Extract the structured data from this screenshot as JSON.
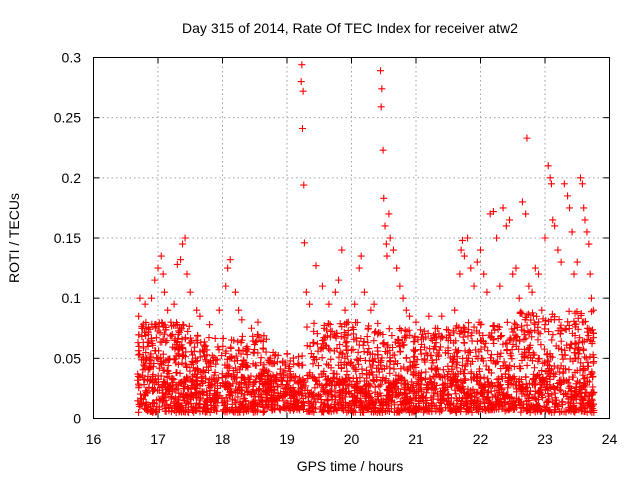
{
  "chart_data": {
    "type": "scatter",
    "title": "Day 315 of 2014, Rate Of TEC Index for receiver atw2",
    "xlabel": "GPS time / hours",
    "ylabel": "ROTI / TECUs",
    "xlim": [
      16,
      24
    ],
    "ylim": [
      0,
      0.3
    ],
    "x_ticks": [
      16,
      17,
      18,
      19,
      20,
      21,
      22,
      23,
      24
    ],
    "x_tick_labels": [
      "16",
      "17",
      "18",
      "19",
      "20",
      "21",
      "22",
      "23",
      "24"
    ],
    "y_ticks": [
      0,
      0.05,
      0.1,
      0.15,
      0.2,
      0.25,
      0.3
    ],
    "y_tick_labels": [
      "0",
      "0.05",
      "0.1",
      "0.15",
      "0.2",
      "0.25",
      "0.3"
    ],
    "grid": true,
    "marker": "+",
    "color": "#ff0000",
    "series": [
      {
        "name": "ROTI",
        "points": [
          [
            16.7,
            0.085
          ],
          [
            16.72,
            0.1
          ],
          [
            16.75,
            0.075
          ],
          [
            16.8,
            0.095
          ],
          [
            16.85,
            0.07
          ],
          [
            16.9,
            0.1
          ],
          [
            16.95,
            0.115
          ],
          [
            17.0,
            0.125
          ],
          [
            17.05,
            0.135
          ],
          [
            17.08,
            0.12
          ],
          [
            17.1,
            0.105
          ],
          [
            17.15,
            0.09
          ],
          [
            17.2,
            0.08
          ],
          [
            17.25,
            0.095
          ],
          [
            17.3,
            0.128
          ],
          [
            17.35,
            0.132
          ],
          [
            17.38,
            0.145
          ],
          [
            17.42,
            0.15
          ],
          [
            17.45,
            0.12
          ],
          [
            17.5,
            0.105
          ],
          [
            17.6,
            0.09
          ],
          [
            17.65,
            0.085
          ],
          [
            17.8,
            0.078
          ],
          [
            17.95,
            0.09
          ],
          [
            18.05,
            0.11
          ],
          [
            18.08,
            0.125
          ],
          [
            18.12,
            0.132
          ],
          [
            18.2,
            0.105
          ],
          [
            18.25,
            0.09
          ],
          [
            18.3,
            0.082
          ],
          [
            18.45,
            0.075
          ],
          [
            18.55,
            0.08
          ],
          [
            19.23,
            0.294
          ],
          [
            19.22,
            0.28
          ],
          [
            19.25,
            0.272
          ],
          [
            19.24,
            0.241
          ],
          [
            19.26,
            0.194
          ],
          [
            19.27,
            0.146
          ],
          [
            19.3,
            0.105
          ],
          [
            19.35,
            0.095
          ],
          [
            19.45,
            0.127
          ],
          [
            19.55,
            0.11
          ],
          [
            19.65,
            0.095
          ],
          [
            19.75,
            0.105
          ],
          [
            19.8,
            0.115
          ],
          [
            19.85,
            0.14
          ],
          [
            19.9,
            0.09
          ],
          [
            19.95,
            0.08
          ],
          [
            20.05,
            0.095
          ],
          [
            20.12,
            0.125
          ],
          [
            20.15,
            0.135
          ],
          [
            20.2,
            0.105
          ],
          [
            20.3,
            0.09
          ],
          [
            20.35,
            0.095
          ],
          [
            20.45,
            0.289
          ],
          [
            20.47,
            0.274
          ],
          [
            20.46,
            0.259
          ],
          [
            20.49,
            0.223
          ],
          [
            20.5,
            0.183
          ],
          [
            20.52,
            0.16
          ],
          [
            20.54,
            0.145
          ],
          [
            20.55,
            0.135
          ],
          [
            20.58,
            0.17
          ],
          [
            20.6,
            0.15
          ],
          [
            20.65,
            0.14
          ],
          [
            20.7,
            0.125
          ],
          [
            20.75,
            0.11
          ],
          [
            20.8,
            0.1
          ],
          [
            20.85,
            0.09
          ],
          [
            20.9,
            0.085
          ],
          [
            21.0,
            0.08
          ],
          [
            21.1,
            0.07
          ],
          [
            21.2,
            0.085
          ],
          [
            21.3,
            0.075
          ],
          [
            21.4,
            0.085
          ],
          [
            21.5,
            0.065
          ],
          [
            21.6,
            0.09
          ],
          [
            21.68,
            0.12
          ],
          [
            21.7,
            0.14
          ],
          [
            21.72,
            0.148
          ],
          [
            21.75,
            0.135
          ],
          [
            21.8,
            0.15
          ],
          [
            21.85,
            0.125
          ],
          [
            21.9,
            0.11
          ],
          [
            21.95,
            0.13
          ],
          [
            22.0,
            0.14
          ],
          [
            22.05,
            0.12
          ],
          [
            22.1,
            0.105
          ],
          [
            22.15,
            0.17
          ],
          [
            22.2,
            0.172
          ],
          [
            22.25,
            0.15
          ],
          [
            22.3,
            0.11
          ],
          [
            22.35,
            0.175
          ],
          [
            22.4,
            0.16
          ],
          [
            22.45,
            0.165
          ],
          [
            22.5,
            0.12
          ],
          [
            22.55,
            0.125
          ],
          [
            22.6,
            0.1
          ],
          [
            22.65,
            0.18
          ],
          [
            22.7,
            0.17
          ],
          [
            22.72,
            0.233
          ],
          [
            22.75,
            0.11
          ],
          [
            22.8,
            0.105
          ],
          [
            22.85,
            0.125
          ],
          [
            22.9,
            0.12
          ],
          [
            22.95,
            0.09
          ],
          [
            23.0,
            0.15
          ],
          [
            23.05,
            0.21
          ],
          [
            23.08,
            0.2
          ],
          [
            23.1,
            0.195
          ],
          [
            23.12,
            0.165
          ],
          [
            23.15,
            0.16
          ],
          [
            23.2,
            0.14
          ],
          [
            23.25,
            0.13
          ],
          [
            23.3,
            0.195
          ],
          [
            23.35,
            0.185
          ],
          [
            23.38,
            0.175
          ],
          [
            23.42,
            0.155
          ],
          [
            23.45,
            0.12
          ],
          [
            23.5,
            0.13
          ],
          [
            23.55,
            0.2
          ],
          [
            23.58,
            0.195
          ],
          [
            23.6,
            0.175
          ],
          [
            23.62,
            0.165
          ],
          [
            23.65,
            0.155
          ],
          [
            23.68,
            0.145
          ],
          [
            23.7,
            0.12
          ],
          [
            23.72,
            0.1
          ],
          [
            23.75,
            0.09
          ]
        ],
        "bands": [
          {
            "x": [
              16.68,
              17.6
            ],
            "ymin": 0.005,
            "ymax": 0.08,
            "count": 340
          },
          {
            "x": [
              17.6,
              18.7
            ],
            "ymin": 0.005,
            "ymax": 0.07,
            "count": 330
          },
          {
            "x": [
              18.7,
              19.3
            ],
            "ymin": 0.007,
            "ymax": 0.055,
            "count": 150
          },
          {
            "x": [
              19.3,
              20.5
            ],
            "ymin": 0.005,
            "ymax": 0.08,
            "count": 360
          },
          {
            "x": [
              20.5,
              21.6
            ],
            "ymin": 0.005,
            "ymax": 0.075,
            "count": 330
          },
          {
            "x": [
              21.6,
              22.6
            ],
            "ymin": 0.007,
            "ymax": 0.08,
            "count": 300
          },
          {
            "x": [
              22.6,
              23.76
            ],
            "ymin": 0.005,
            "ymax": 0.09,
            "count": 380
          }
        ],
        "dense_floor": {
          "x": [
            16.68,
            23.76
          ],
          "ymin": 0.005,
          "ymax": 0.035,
          "count": 700
        }
      }
    ]
  }
}
